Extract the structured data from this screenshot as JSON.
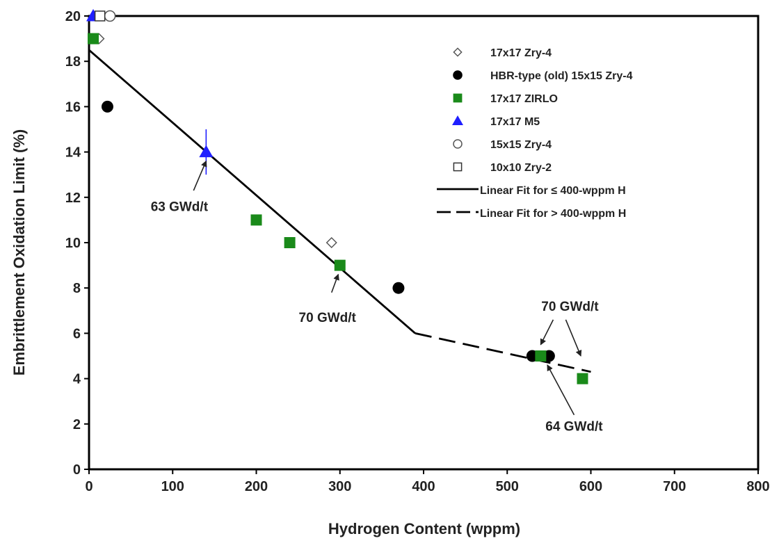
{
  "chart_data": {
    "type": "scatter",
    "xlabel": "Hydrogen Content (wppm)",
    "ylabel": "Embrittlement Oxidation Limit (%)",
    "xlim": [
      0,
      800
    ],
    "ylim": [
      0,
      20
    ],
    "xticks": [
      0,
      100,
      200,
      300,
      400,
      500,
      600,
      700,
      800
    ],
    "yticks": [
      0,
      2,
      4,
      6,
      8,
      10,
      12,
      14,
      16,
      18,
      20
    ],
    "grid": false,
    "legend_position": "top-right",
    "series": [
      {
        "name": "17x17 Zry-4",
        "marker": "diamond-open",
        "color": "#555555",
        "points": [
          [
            12,
            19
          ],
          [
            290,
            10
          ]
        ]
      },
      {
        "name": "HBR-type (old) 15x15 Zry-4",
        "marker": "circle-filled",
        "color": "#000000",
        "points": [
          [
            22,
            16
          ],
          [
            370,
            8
          ],
          [
            530,
            5
          ],
          [
            550,
            5
          ]
        ]
      },
      {
        "name": "17x17 ZIRLO",
        "marker": "square-filled",
        "color": "#1a8a1a",
        "points": [
          [
            5,
            19
          ],
          [
            200,
            11
          ],
          [
            240,
            10
          ],
          [
            300,
            9
          ],
          [
            540,
            5
          ],
          [
            590,
            4
          ]
        ]
      },
      {
        "name": "17x17 M5",
        "marker": "triangle-filled",
        "color": "#1f1fff",
        "points": [
          [
            5,
            20
          ],
          [
            140,
            14
          ]
        ]
      },
      {
        "name": "15x15 Zry-4",
        "marker": "circle-open",
        "color": "#555555",
        "points": [
          [
            25,
            20
          ]
        ]
      },
      {
        "name": "10x10 Zry-2",
        "marker": "square-open",
        "color": "#333333",
        "points": [
          [
            13,
            20
          ]
        ]
      }
    ],
    "fit_lines": [
      {
        "name": "Linear Fit for ≤ 400-wppm H",
        "style": "solid",
        "points": [
          [
            0,
            18.5
          ],
          [
            390,
            6
          ]
        ]
      },
      {
        "name": "Linear Fit for > 400-wppm H",
        "style": "dashed",
        "points": [
          [
            390,
            6
          ],
          [
            600,
            4.3
          ]
        ]
      }
    ],
    "error_bars": [
      {
        "x": 140,
        "y_low": 13,
        "y_high": 15,
        "color": "#1f1fff"
      }
    ],
    "annotations": [
      {
        "text": "63 GWd/t",
        "text_at": [
          108,
          11.4
        ],
        "arrow_from": [
          125,
          12.3
        ],
        "arrow_to": [
          140,
          13.6
        ]
      },
      {
        "text": "70 GWd/t",
        "text_at": [
          285,
          6.5
        ],
        "arrow_from": [
          290,
          7.8
        ],
        "arrow_to": [
          298,
          8.6
        ]
      },
      {
        "text": "70 GWd/t",
        "text_at": [
          575,
          7.0
        ],
        "arrow_from": [
          555,
          6.6
        ],
        "arrow_to": [
          540,
          5.5
        ],
        "arrow2_from": [
          570,
          6.6
        ],
        "arrow2_to": [
          588,
          5.0
        ]
      },
      {
        "text": "64 GWd/t",
        "text_at": [
          580,
          1.7
        ],
        "arrow_from": [
          580,
          2.4
        ],
        "arrow_to": [
          548,
          4.6
        ]
      }
    ]
  }
}
